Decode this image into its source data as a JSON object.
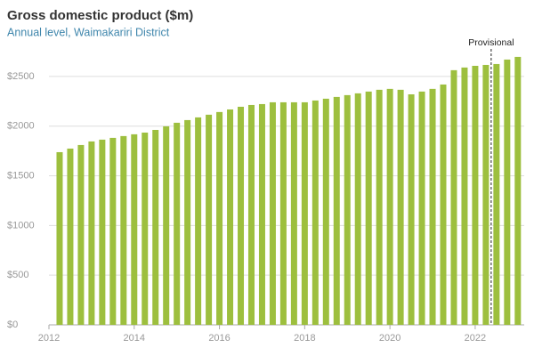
{
  "chart_data": {
    "type": "bar",
    "title": "Gross domestic product ($m)",
    "subtitle": "Annual level, Waimakariri District",
    "x": [
      2012.25,
      2012.5,
      2012.75,
      2013,
      2013.25,
      2013.5,
      2013.75,
      2014,
      2014.25,
      2014.5,
      2014.75,
      2015,
      2015.25,
      2015.5,
      2015.75,
      2016,
      2016.25,
      2016.5,
      2016.75,
      2017,
      2017.25,
      2017.5,
      2017.75,
      2018,
      2018.25,
      2018.5,
      2018.75,
      2019,
      2019.25,
      2019.5,
      2019.75,
      2020,
      2020.25,
      2020.5,
      2020.75,
      2021,
      2021.25,
      2021.5,
      2021.75,
      2022,
      2022.25,
      2022.5,
      2022.75,
      2023
    ],
    "values": [
      1738,
      1774,
      1810,
      1846,
      1864,
      1882,
      1900,
      1918,
      1935,
      1962,
      1998,
      2034,
      2061,
      2088,
      2115,
      2142,
      2168,
      2195,
      2213,
      2222,
      2240,
      2240,
      2240,
      2240,
      2258,
      2276,
      2294,
      2312,
      2330,
      2348,
      2366,
      2375,
      2366,
      2320,
      2348,
      2375,
      2419,
      2563,
      2590,
      2607,
      2616,
      2625,
      2670,
      2697
    ],
    "color": "#9dbf3e",
    "xlim": [
      2012,
      2023.15
    ],
    "xticks": [
      2012,
      2014,
      2016,
      2018,
      2020,
      2022
    ],
    "ylim": [
      0,
      2750
    ],
    "yticks": [
      {
        "value": 0,
        "label": "$0"
      },
      {
        "value": 500,
        "label": "$500"
      },
      {
        "value": 1000,
        "label": "$1000"
      },
      {
        "value": 1500,
        "label": "$1500"
      },
      {
        "value": 2000,
        "label": "$2000"
      },
      {
        "value": 2500,
        "label": "$2500"
      }
    ],
    "grid": true,
    "annotation": {
      "text": "Provisional",
      "x": 2022.375
    }
  }
}
